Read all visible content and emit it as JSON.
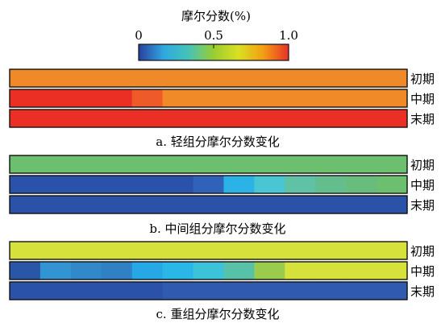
{
  "chart_data": {
    "type": "heatmap",
    "colorbar": {
      "title": "摩尔分数(%)",
      "tick_labels": [
        "0",
        "0.5",
        "1.0"
      ],
      "ticks": [
        0,
        0.5,
        1.0
      ],
      "range": [
        0,
        1.0
      ],
      "colormap": [
        "#2a3f9d",
        "#2fa8e0",
        "#45c3b6",
        "#9acd32",
        "#d9e021",
        "#f39c12",
        "#e6322a"
      ]
    },
    "row_labels": [
      "初期",
      "中期",
      "末期"
    ],
    "panels": [
      {
        "title": "a. 轻组分摩尔分数变化",
        "rows": [
          {
            "label": "初期",
            "colors": [
              "#f08a28"
            ]
          },
          {
            "label": "中期",
            "colors": [
              "#ec2f25",
              "#ec2f25",
              "#ec2f25",
              "#ec2f25",
              "#ee5a28",
              "#f08a28",
              "#f08a28",
              "#f08a28",
              "#f08a28",
              "#f08a28",
              "#f08a28",
              "#f08a28",
              "#f08a28"
            ]
          },
          {
            "label": "末期",
            "colors": [
              "#ec2f25"
            ]
          }
        ]
      },
      {
        "title": "b. 中间组分摩尔分数变化",
        "rows": [
          {
            "label": "初期",
            "colors": [
              "#6cbf6e"
            ]
          },
          {
            "label": "中期",
            "colors": [
              "#2a52a8",
              "#2a52a8",
              "#2a52a8",
              "#2a52a8",
              "#2a52a8",
              "#2a52a8",
              "#2f62b8",
              "#2bb2e6",
              "#49c6d4",
              "#5fc1a6",
              "#63bd8c",
              "#68bd7c",
              "#6cbf6e"
            ]
          },
          {
            "label": "末期",
            "colors": [
              "#2a52a8"
            ]
          }
        ]
      },
      {
        "title": "c. 重组分摩尔分数变化",
        "rows": [
          {
            "label": "初期",
            "colors": [
              "#d6e13c"
            ]
          },
          {
            "label": "中期",
            "colors": [
              "#2a56a8",
              "#3394d4",
              "#3189cb",
              "#2f80c4",
              "#27a8e6",
              "#2bb6e8",
              "#3cc3da",
              "#57c2a8",
              "#9bcb4c",
              "#d6e13c",
              "#d6e13c",
              "#d6e13c",
              "#d6e13c"
            ]
          },
          {
            "label": "末期",
            "colors": [
              "#2a52a8",
              "#2a52a8",
              "#2a52a8",
              "#2a52a8",
              "#2a52a8",
              "#2f5ab0",
              "#2f5ab0",
              "#2f5ab0",
              "#2f5ab0",
              "#2f5ab0",
              "#2f5ab0",
              "#2f5ab0",
              "#2f5ab0"
            ]
          }
        ]
      }
    ]
  }
}
